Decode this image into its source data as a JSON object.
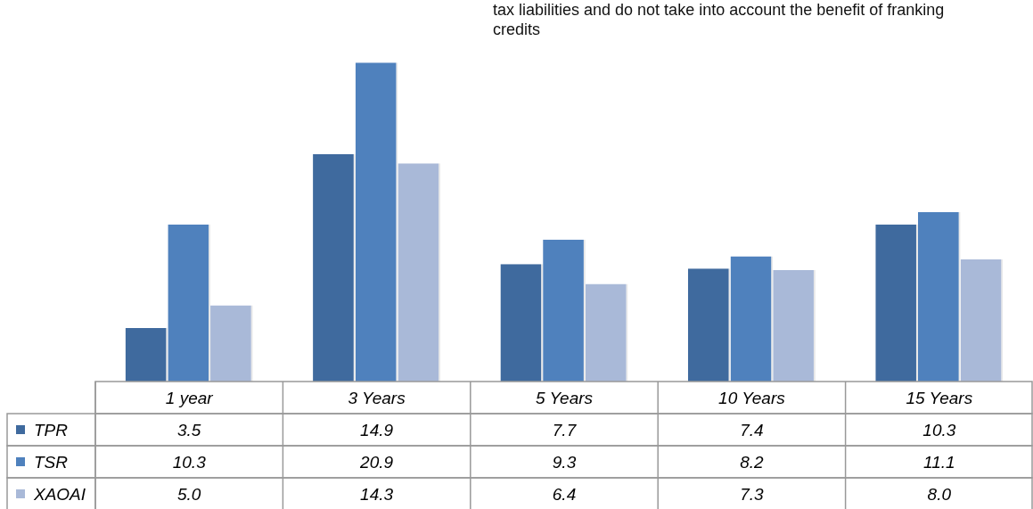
{
  "chart_data": {
    "type": "bar",
    "categories": [
      "1 year",
      "3 Years",
      "5 Years",
      "10 Years",
      "15 Years"
    ],
    "series": [
      {
        "name": "TPR",
        "color": "#3f6a9e",
        "values": [
          3.5,
          14.9,
          7.7,
          7.4,
          10.3
        ],
        "value_labels": [
          "3.5",
          "14.9",
          "7.7",
          "7.4",
          "10.3"
        ]
      },
      {
        "name": "TSR",
        "color": "#4f81bd",
        "values": [
          10.3,
          20.9,
          9.3,
          8.2,
          11.1
        ],
        "value_labels": [
          "10.3",
          "20.9",
          "9.3",
          "8.2",
          "11.1"
        ]
      },
      {
        "name": "XAOAI",
        "color": "#a9b9d8",
        "values": [
          5.0,
          14.3,
          6.4,
          7.3,
          8.0
        ],
        "value_labels": [
          "5.0",
          "14.3",
          "6.4",
          "7.3",
          "8.0"
        ]
      }
    ],
    "legend": "bottom left",
    "annotations": [
      "tax liabilities and do not take into account the benefit of franking credits"
    ]
  }
}
